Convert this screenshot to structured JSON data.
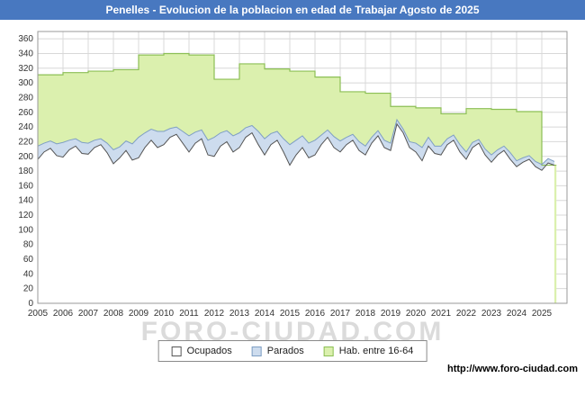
{
  "title_bar": {
    "title": "Penelles - Evolucion de la poblacion en edad de Trabajar Agosto de 2025",
    "bg_color": "#4878c0"
  },
  "watermark": "FORO-CIUDAD.COM",
  "footer": {
    "url": "http://www.foro-ciudad.com"
  },
  "legend": [
    {
      "label": "Ocupados",
      "fill": "#ffffff",
      "stroke": "#555555"
    },
    {
      "label": "Parados",
      "fill": "#cddcee",
      "stroke": "#7f9fc4"
    },
    {
      "label": "Hab. entre 16-64",
      "fill": "#dbf0ae",
      "stroke": "#8cbf55"
    }
  ],
  "chart_data": {
    "type": "area",
    "title": "Penelles - Evolucion de la poblacion en edad de Trabajar Agosto de 2025",
    "xlabel": "",
    "ylabel": "",
    "xlim": [
      2005,
      2026
    ],
    "ylim": [
      0,
      370
    ],
    "x_end": 2025.58,
    "grid": true,
    "legend_position": "bottom",
    "x_ticks": [
      2005,
      2006,
      2007,
      2008,
      2009,
      2010,
      2011,
      2012,
      2013,
      2014,
      2015,
      2016,
      2017,
      2018,
      2019,
      2020,
      2021,
      2022,
      2023,
      2024,
      2025
    ],
    "y_ticks": [
      0,
      20,
      40,
      60,
      80,
      100,
      120,
      140,
      160,
      180,
      200,
      220,
      240,
      260,
      280,
      300,
      320,
      340,
      360
    ],
    "series": [
      {
        "name": "Hab. entre 16-64",
        "style": "step-area",
        "fill": "#dbf0ae",
        "stroke": "#8cbf55",
        "x": [
          2005,
          2006,
          2007,
          2008,
          2009,
          2010,
          2011,
          2012,
          2013,
          2014,
          2015,
          2016,
          2017,
          2018,
          2019,
          2020,
          2021,
          2022,
          2023,
          2024,
          2025
        ],
        "values": [
          311,
          314,
          316,
          318,
          338,
          340,
          338,
          305,
          326,
          319,
          316,
          308,
          288,
          286,
          268,
          266,
          258,
          265,
          264,
          261,
          188
        ]
      },
      {
        "name": "Ocupados",
        "style": "area",
        "fill": "#ffffff",
        "stroke": "#555555",
        "x_start": 2005.0,
        "x_step": 0.25,
        "values": [
          196,
          206,
          211,
          201,
          199,
          209,
          214,
          204,
          203,
          212,
          216,
          205,
          190,
          198,
          208,
          195,
          198,
          212,
          222,
          212,
          216,
          226,
          230,
          218,
          206,
          218,
          224,
          202,
          200,
          214,
          220,
          206,
          212,
          226,
          232,
          216,
          202,
          216,
          222,
          206,
          188,
          202,
          212,
          198,
          202,
          216,
          226,
          212,
          206,
          216,
          222,
          208,
          202,
          218,
          228,
          212,
          208,
          244,
          232,
          212,
          206,
          194,
          214,
          204,
          202,
          216,
          222,
          206,
          196,
          212,
          218,
          202,
          192,
          202,
          208,
          196,
          186,
          192,
          196,
          186,
          181,
          191,
          188
        ]
      },
      {
        "name": "Parados",
        "style": "stacked-band",
        "stacked_on": "Ocupados",
        "fill": "#cddcee",
        "stroke": "#7f9fc4",
        "x_start": 2005.0,
        "x_step": 0.25,
        "values": [
          18,
          12,
          10,
          16,
          20,
          13,
          10,
          15,
          15,
          10,
          8,
          13,
          19,
          15,
          13,
          22,
          28,
          20,
          15,
          22,
          18,
          12,
          10,
          16,
          22,
          15,
          12,
          20,
          26,
          18,
          15,
          22,
          20,
          13,
          10,
          18,
          22,
          15,
          12,
          18,
          28,
          20,
          16,
          20,
          20,
          13,
          10,
          15,
          15,
          10,
          8,
          12,
          12,
          8,
          7,
          10,
          10,
          6,
          5,
          8,
          12,
          18,
          12,
          10,
          12,
          8,
          7,
          10,
          10,
          7,
          5,
          8,
          10,
          7,
          6,
          9,
          8,
          6,
          5,
          7,
          8,
          6,
          5
        ]
      }
    ]
  }
}
